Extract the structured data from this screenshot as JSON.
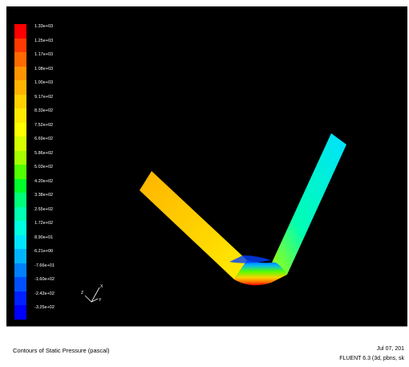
{
  "colorbar": {
    "labels": [
      "1.33e+03",
      "1.25e+03",
      "1.17e+03",
      "1.08e+03",
      "1.00e+03",
      "9.17e+02",
      "8.33e+02",
      "7.52e+02",
      "6.69e+02",
      "5.86e+02",
      "5.03e+02",
      "4.20e+02",
      "3.38e+02",
      "2.55e+02",
      "1.72e+02",
      "8.90e+01",
      "6.21e+00",
      "-7.66e+01",
      "-1.60e+02",
      "-2.42e+02",
      "-3.25e+02"
    ],
    "colors": [
      "#ff0000",
      "#ff3a00",
      "#ff6a00",
      "#ff9500",
      "#ffb400",
      "#ffd200",
      "#ffea00",
      "#ffff00",
      "#d6ff00",
      "#a6ff00",
      "#52ff00",
      "#00ff2a",
      "#00ff78",
      "#00ffb2",
      "#00ffe0",
      "#00e6ff",
      "#00b4ff",
      "#0080ff",
      "#0050ff",
      "#0020ff",
      "#0000ff"
    ]
  },
  "status_bar": {
    "caption": "Contours of Static Pressure (pascal)",
    "date": "Jul 07, 201",
    "version": "FLUENT 6.3 (3d, pbns, sk"
  },
  "axes_triad": {
    "labels": [
      "Z",
      "X",
      "Y"
    ]
  }
}
